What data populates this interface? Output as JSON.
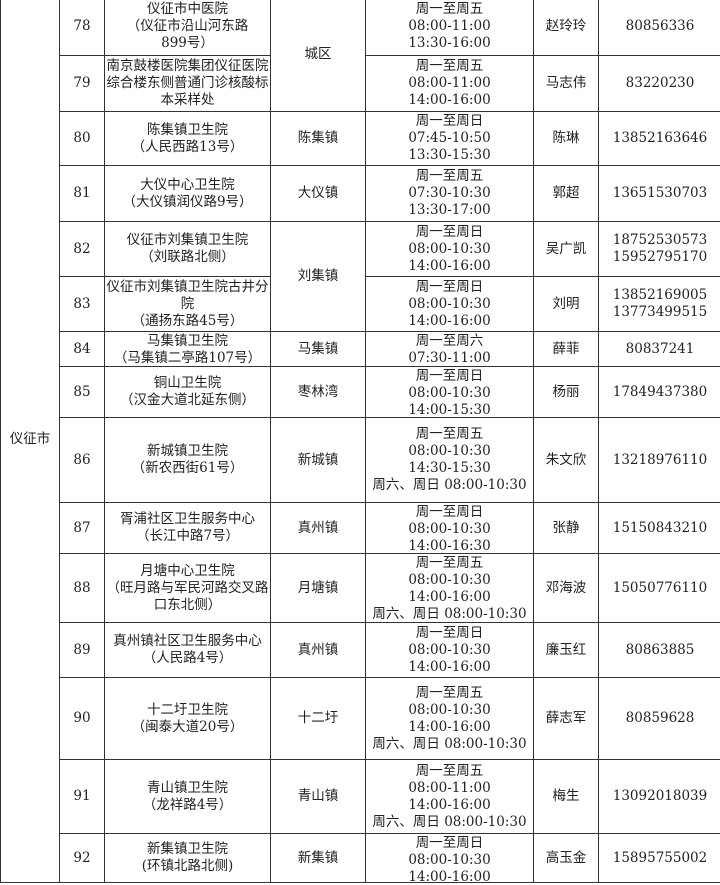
{
  "city": "仪征市",
  "rows": [
    {
      "no": "78",
      "name": [
        "仪征市中医院",
        "（仪征市沿山河东路",
        "899号）"
      ],
      "district": "城区",
      "district_span": 2,
      "hours": [
        "周一至周五",
        "08:00-11:00",
        "13:30-16:00"
      ],
      "contact": "赵玲玲",
      "phone": [
        "80856336"
      ]
    },
    {
      "no": "79",
      "name": [
        "南京鼓楼医院集团仪征医院",
        "综合楼东侧普通门诊核酸标",
        "本采样处"
      ],
      "district": null,
      "hours": [
        "周一至周五",
        "08:00-11:00",
        "14:00-16:00"
      ],
      "contact": "马志伟",
      "phone": [
        "83220230"
      ]
    },
    {
      "no": "80",
      "name": [
        "陈集镇卫生院",
        "（人民西路13号）"
      ],
      "district": "陈集镇",
      "district_span": 1,
      "hours": [
        "周一至周日",
        "07:45-10:50",
        "13:30-15:30"
      ],
      "contact": "陈琳",
      "phone": [
        "13852163646"
      ]
    },
    {
      "no": "81",
      "name": [
        "大仪中心卫生院",
        "（大仪镇润仪路9号）"
      ],
      "district": "大仪镇",
      "district_span": 1,
      "hours": [
        "周一至周五",
        "07:30-10:30",
        "13:30-17:00"
      ],
      "contact": "郭超",
      "phone": [
        "13651530703"
      ]
    },
    {
      "no": "82",
      "name": [
        "仪征市刘集镇卫生院",
        "（刘联路北侧）"
      ],
      "district": "刘集镇",
      "district_span": 2,
      "hours": [
        "周一至周日",
        "08:00-10:30",
        "14:00-16:00"
      ],
      "contact": "吴广凯",
      "phone": [
        "18752530573",
        "15952795170"
      ]
    },
    {
      "no": "83",
      "name": [
        "仪征市刘集镇卫生院古井分",
        "院",
        "（通扬东路45号）"
      ],
      "district": null,
      "hours": [
        "周一至周日",
        "08:00-10:30",
        "14:00-16:00"
      ],
      "contact": "刘明",
      "phone": [
        "13852169005",
        "13773499515"
      ]
    },
    {
      "no": "84",
      "name": [
        "马集镇卫生院",
        "（马集镇二亭路107号）"
      ],
      "district": "马集镇",
      "district_span": 1,
      "hours": [
        "周一至周六",
        "07:30-11:00"
      ],
      "contact": "薛菲",
      "phone": [
        "80837241"
      ]
    },
    {
      "no": "85",
      "name": [
        "铜山卫生院",
        "（汉金大道北延东侧）"
      ],
      "district": "枣林湾",
      "district_span": 1,
      "hours": [
        "周一至周日",
        "08:00-10:30",
        "14:00-15:30"
      ],
      "contact": "杨丽",
      "phone": [
        "17849437380"
      ]
    },
    {
      "no": "86",
      "name": [
        "新城镇卫生院",
        "（新农西街61号）"
      ],
      "district": "新城镇",
      "district_span": 1,
      "hours": [
        "周一至周五",
        "08:00-10:30",
        "14:30-15:30",
        "周六、周日 08:00-10:30"
      ],
      "contact": "朱文欣",
      "phone": [
        "13218976110"
      ]
    },
    {
      "no": "87",
      "name": [
        "胥浦社区卫生服务中心",
        "（长江中路7号）"
      ],
      "district": "真州镇",
      "district_span": 1,
      "hours": [
        "周一至周日",
        "08:00-10:30",
        "14:00-16:30"
      ],
      "contact": "张静",
      "phone": [
        "15150843210"
      ]
    },
    {
      "no": "88",
      "name": [
        "月塘中心卫生院",
        "（旺月路与军民河路交叉路",
        "口东北侧）"
      ],
      "district": "月塘镇",
      "district_span": 1,
      "hours": [
        "周一至周五",
        "08:00-10:30",
        "14:00-16:00",
        "周六、周日 08:00-10:30"
      ],
      "contact": "邓海波",
      "phone": [
        "15050776110"
      ]
    },
    {
      "no": "89",
      "name": [
        "真州镇社区卫生服务中心",
        "（人民路4号）"
      ],
      "district": "真州镇",
      "district_span": 1,
      "hours": [
        "周一至周日",
        "08:00-10:30",
        "14:00-16:00"
      ],
      "contact": "廉玉红",
      "phone": [
        "80863885"
      ]
    },
    {
      "no": "90",
      "name": [
        "十二圩卫生院",
        "（闽泰大道20号）"
      ],
      "district": "十二圩",
      "district_span": 1,
      "hours": [
        "周一至周五",
        "08:00-10:30",
        "14:00-16:00",
        "周六、周日 08:00-10:30"
      ],
      "contact": "薛志军",
      "phone": [
        "80859628"
      ]
    },
    {
      "no": "91",
      "name": [
        "青山镇卫生院",
        "（龙祥路4号）"
      ],
      "district": "青山镇",
      "district_span": 1,
      "hours": [
        "周一至周五",
        "08:00-11:00",
        "14:00-16:00",
        "周六、周日 08:00-10:30"
      ],
      "contact": "梅生",
      "phone": [
        "13092018039"
      ]
    },
    {
      "no": "92",
      "name": [
        "新集镇卫生院",
        "(环镇北路北侧)"
      ],
      "district": "新集镇",
      "district_span": 1,
      "hours": [
        "周一至周日",
        "08:00-10:30",
        "14:00-16:00"
      ],
      "contact": "高玉金",
      "phone": [
        "15895755002"
      ]
    }
  ]
}
